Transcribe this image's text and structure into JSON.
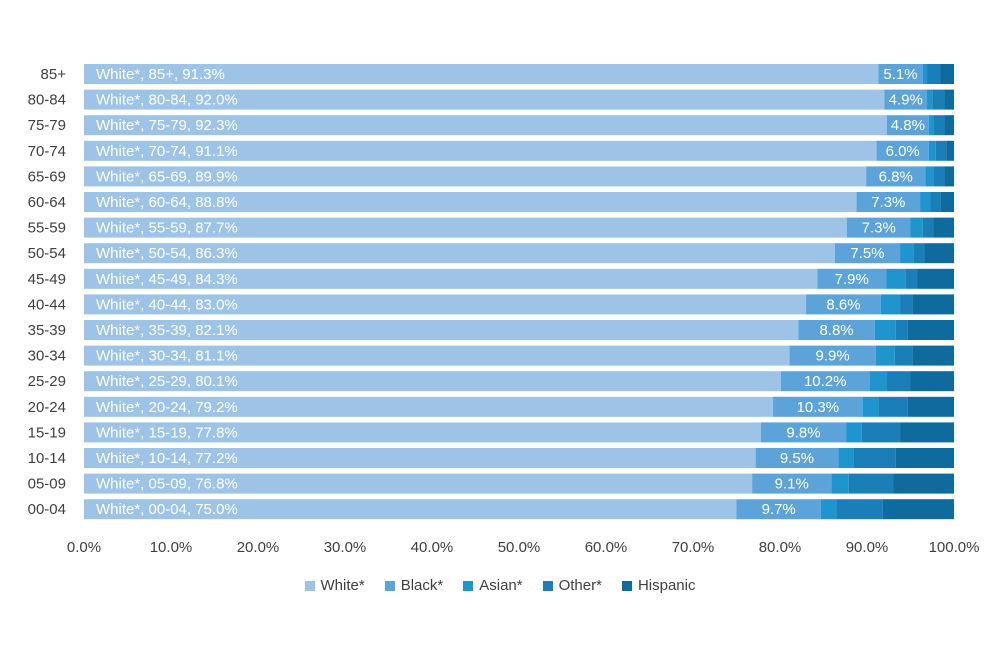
{
  "chart_data": {
    "type": "bar",
    "orientation": "horizontal",
    "stacked": true,
    "title": "",
    "xlabel": "",
    "ylabel": "",
    "xlim": [
      0,
      100
    ],
    "x_ticks": [
      "0.0%",
      "10.0%",
      "20.0%",
      "30.0%",
      "40.0%",
      "50.0%",
      "60.0%",
      "70.0%",
      "80.0%",
      "90.0%",
      "100.0%"
    ],
    "categories": [
      "85+",
      "80-84",
      "75-79",
      "70-74",
      "65-69",
      "60-64",
      "55-59",
      "50-54",
      "45-49",
      "40-44",
      "35-39",
      "30-34",
      "25-29",
      "20-24",
      "15-19",
      "10-14",
      "05-09",
      "00-04"
    ],
    "series": [
      {
        "name": "White*",
        "color": "#9dc3e6",
        "values": [
          91.3,
          92.0,
          92.3,
          91.1,
          89.9,
          88.8,
          87.7,
          86.3,
          84.3,
          83.0,
          82.1,
          81.1,
          80.1,
          79.2,
          77.8,
          77.2,
          76.8,
          75.0
        ]
      },
      {
        "name": "Black*",
        "color": "#5ba3d9",
        "values": [
          5.1,
          4.9,
          4.8,
          6.0,
          6.8,
          7.3,
          7.3,
          7.5,
          7.9,
          8.6,
          8.8,
          9.9,
          10.2,
          10.3,
          9.8,
          9.5,
          9.1,
          9.7
        ]
      },
      {
        "name": "Asian*",
        "color": "#1f95cf",
        "values": [
          0.5,
          0.6,
          0.6,
          0.8,
          1.0,
          1.2,
          1.4,
          1.6,
          2.2,
          2.2,
          2.4,
          2.2,
          2.0,
          1.8,
          1.8,
          1.8,
          2.0,
          1.8
        ]
      },
      {
        "name": "Other*",
        "color": "#1a7fb8",
        "values": [
          1.5,
          1.4,
          1.2,
          1.2,
          1.2,
          1.2,
          1.2,
          1.2,
          1.4,
          1.4,
          1.4,
          2.0,
          2.7,
          3.4,
          4.4,
          4.8,
          5.1,
          5.3
        ]
      },
      {
        "name": "Hispanic",
        "color": "#0f6a9e",
        "values": [
          1.6,
          1.1,
          1.1,
          0.9,
          1.1,
          1.5,
          2.4,
          3.4,
          4.2,
          4.8,
          5.3,
          4.8,
          5.0,
          5.3,
          6.2,
          6.7,
          7.0,
          8.2
        ]
      }
    ],
    "white_bar_labels": [
      "White*, 85+, 91.3%",
      "White*, 80-84, 92.0%",
      "White*, 75-79, 92.3%",
      "White*, 70-74, 91.1%",
      "White*, 65-69, 89.9%",
      "White*, 60-64, 88.8%",
      "White*, 55-59, 87.7%",
      "White*, 50-54, 86.3%",
      "White*, 45-49, 84.3%",
      "White*, 40-44, 83.0%",
      "White*, 35-39, 82.1%",
      "White*, 30-34, 81.1%",
      "White*, 25-29, 80.1%",
      "White*, 20-24, 79.2%",
      "White*, 15-19, 77.8%",
      "White*, 10-14, 77.2%",
      "White*, 05-09, 76.8%",
      "White*, 00-04, 75.0%"
    ],
    "black_bar_labels": [
      "5.1%",
      "4.9%",
      "4.8%",
      "6.0%",
      "6.8%",
      "7.3%",
      "7.3%",
      "7.5%",
      "7.9%",
      "8.6%",
      "8.8%",
      "9.9%",
      "10.2%",
      "10.3%",
      "9.8%",
      "9.5%",
      "9.1%",
      "9.7%"
    ],
    "legend_position": "bottom",
    "grid": false
  }
}
